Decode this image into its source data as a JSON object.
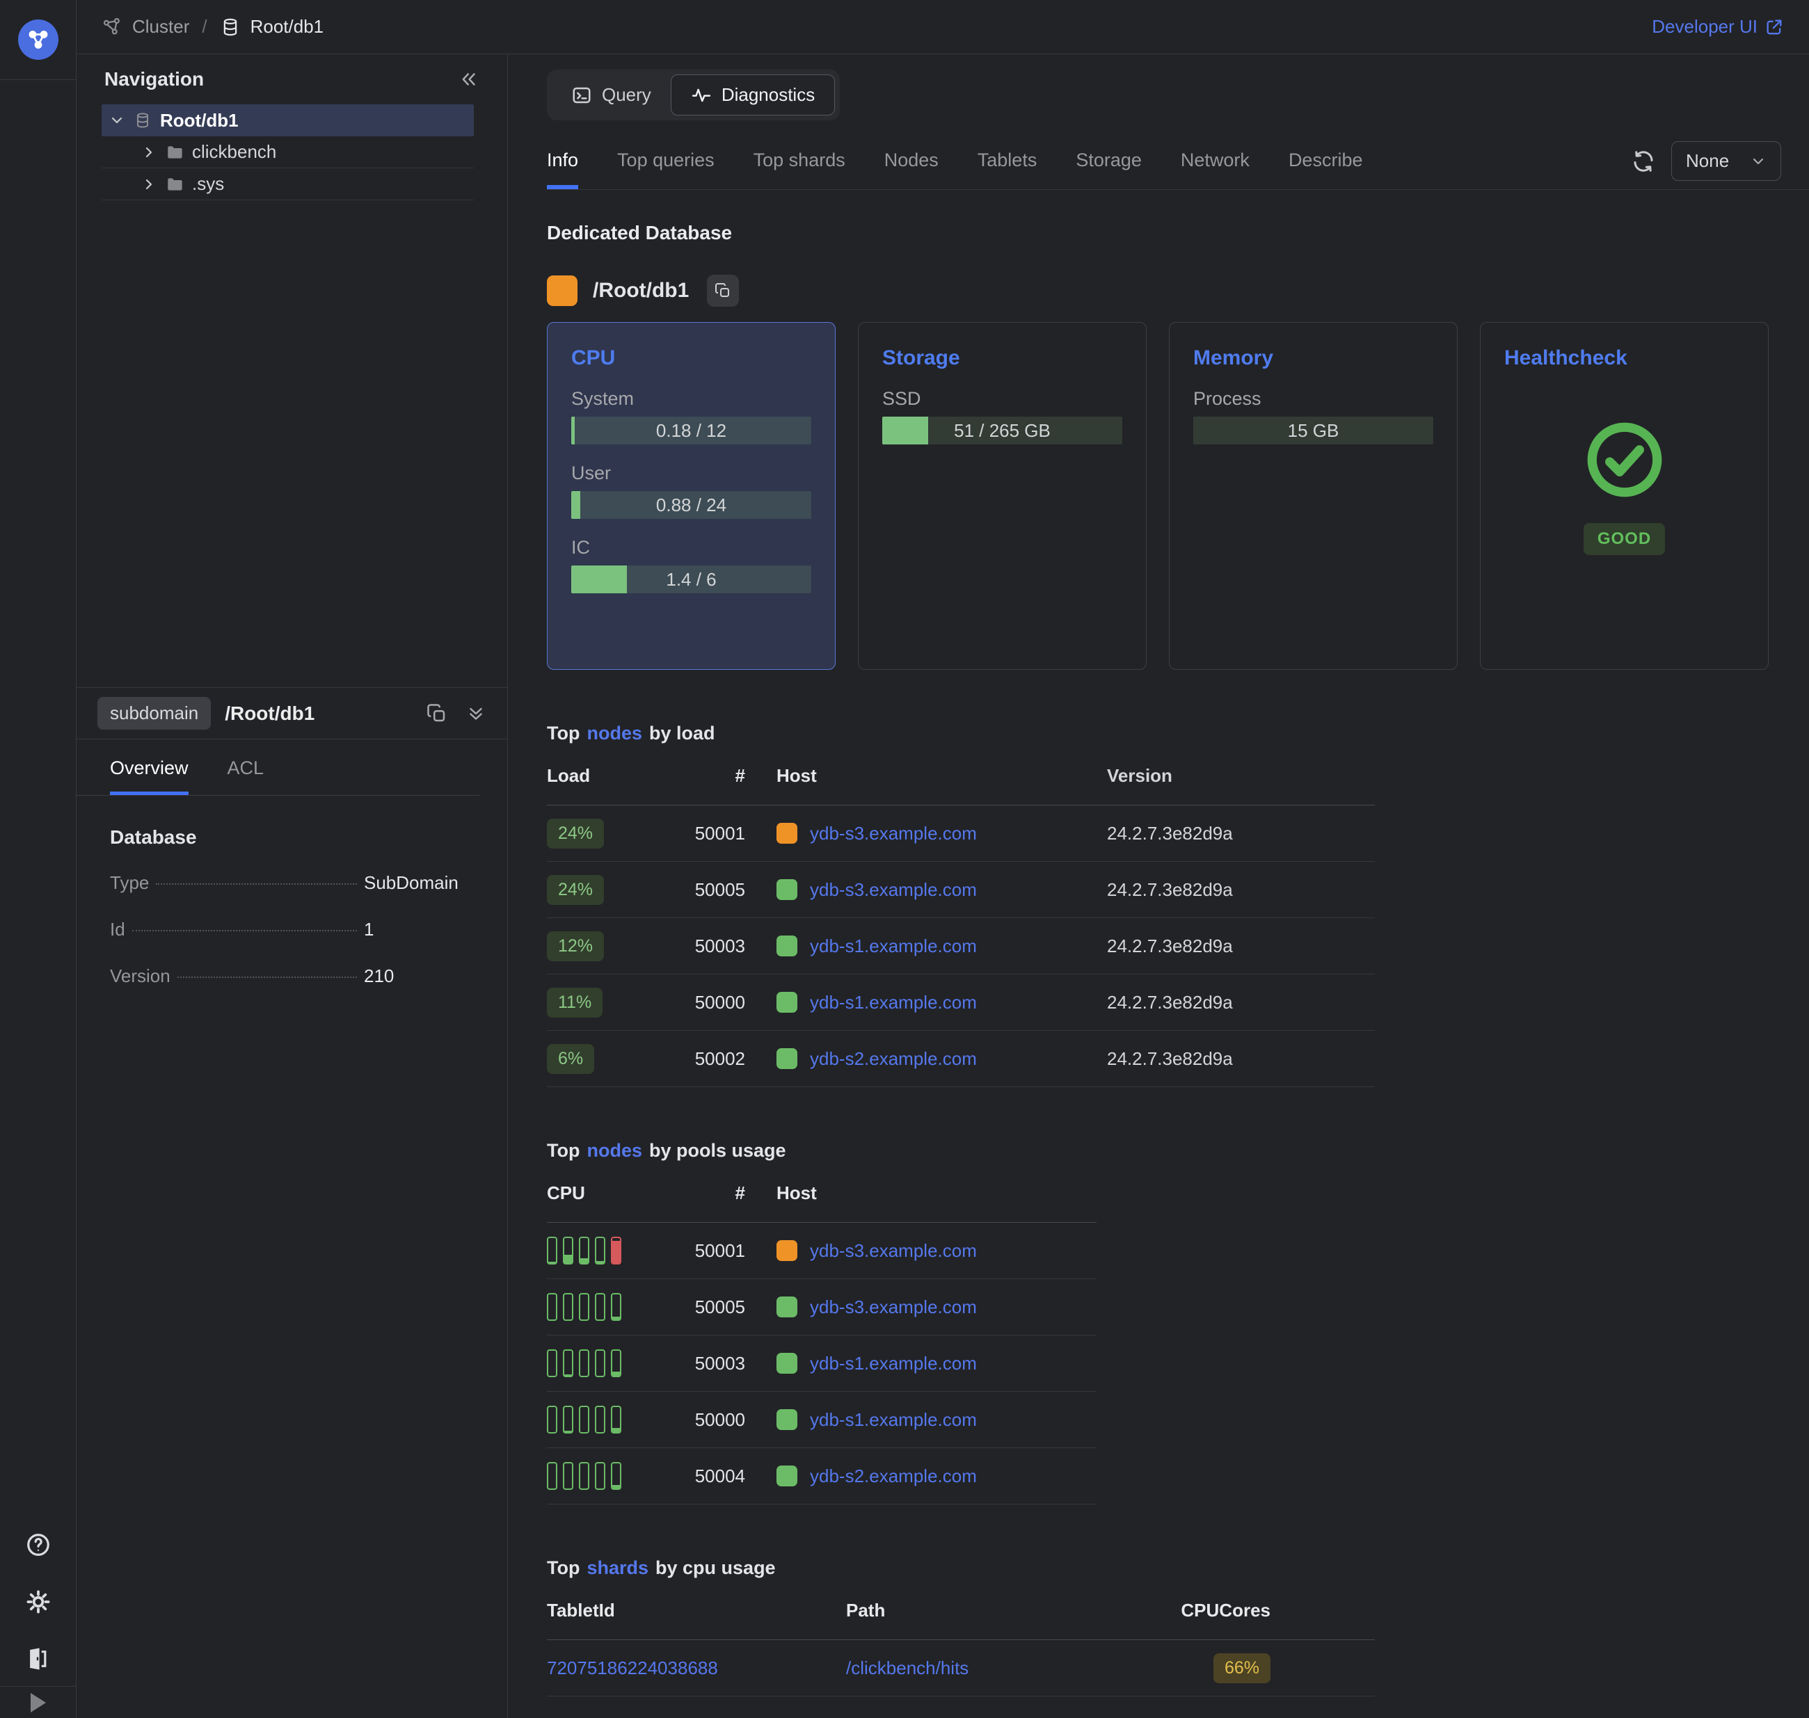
{
  "theme": {
    "accent_blue": "#5076ee",
    "green": "#6cbc67",
    "orange": "#ef9327",
    "red": "#d6595c",
    "yellow": "#e3bf4b"
  },
  "header": {
    "breadcrumb_cluster": "Cluster",
    "breadcrumb_separator": "/",
    "breadcrumb_entity": "Root/db1",
    "developer_ui_label": "Developer UI"
  },
  "sidebar": {
    "title": "Navigation",
    "tree": [
      {
        "label": "Root/db1"
      },
      {
        "label": "clickbench"
      },
      {
        "label": ".sys"
      }
    ],
    "info": {
      "type_badge": "subdomain",
      "path": "/Root/db1",
      "tab_overview": "Overview",
      "tab_acl": "ACL",
      "section_title": "Database",
      "props": [
        {
          "label": "Type",
          "value": "SubDomain"
        },
        {
          "label": "Id",
          "value": "1"
        },
        {
          "label": "Version",
          "value": "210"
        }
      ]
    }
  },
  "toolbar": {
    "query_label": "Query",
    "diagnostics_label": "Diagnostics",
    "tabs": [
      "Info",
      "Top queries",
      "Top shards",
      "Nodes",
      "Tablets",
      "Storage",
      "Network",
      "Describe"
    ],
    "active_tab": "Info",
    "autorefresh_value": "None"
  },
  "main": {
    "section_title": "Dedicated Database",
    "entity": {
      "name": "/Root/db1",
      "status_color": "#ef9327"
    },
    "cards": {
      "cpu": {
        "title": "CPU",
        "metrics": [
          {
            "label": "System",
            "text": "0.18 / 12",
            "fill": "1.5%"
          },
          {
            "label": "User",
            "text": "0.88 / 24",
            "fill": "3.7%"
          },
          {
            "label": "IC",
            "text": "1.4 / 6",
            "fill": "23.3%"
          }
        ]
      },
      "storage": {
        "title": "Storage",
        "metrics": [
          {
            "label": "SSD",
            "text": "51 / 265 GB",
            "fill": "19.2%"
          }
        ]
      },
      "memory": {
        "title": "Memory",
        "metrics": [
          {
            "label": "Process",
            "text": "15 GB",
            "fill": "0%"
          }
        ]
      },
      "healthcheck": {
        "title": "Healthcheck",
        "status": "GOOD"
      }
    },
    "top_nodes_load": {
      "title_prefix": "Top",
      "title_link": "nodes",
      "title_suffix": "by load",
      "headers": {
        "load": "Load",
        "num": "#",
        "host": "Host",
        "version": "Version"
      },
      "rows": [
        {
          "load": "24%",
          "id": "50001",
          "host": "ydb-s3.example.com",
          "version": "24.2.7.3e82d9a",
          "status_color": "#ef9327"
        },
        {
          "load": "24%",
          "id": "50005",
          "host": "ydb-s3.example.com",
          "version": "24.2.7.3e82d9a",
          "status_color": "#6cbc67"
        },
        {
          "load": "12%",
          "id": "50003",
          "host": "ydb-s1.example.com",
          "version": "24.2.7.3e82d9a",
          "status_color": "#6cbc67"
        },
        {
          "load": "11%",
          "id": "50000",
          "host": "ydb-s1.example.com",
          "version": "24.2.7.3e82d9a",
          "status_color": "#6cbc67"
        },
        {
          "load": "6%",
          "id": "50002",
          "host": "ydb-s2.example.com",
          "version": "24.2.7.3e82d9a",
          "status_color": "#6cbc67"
        }
      ]
    },
    "top_nodes_pools": {
      "title_prefix": "Top",
      "title_link": "nodes",
      "title_suffix": "by pools usage",
      "headers": {
        "cpu": "CPU",
        "num": "#",
        "host": "Host"
      },
      "rows": [
        {
          "id": "50001",
          "host": "ydb-s3.example.com",
          "status_color": "#ef9327",
          "pools": [
            {
              "fill": "6%",
              "color": "green"
            },
            {
              "fill": "34%",
              "color": "green"
            },
            {
              "fill": "20%",
              "color": "green"
            },
            {
              "fill": "8%",
              "color": "green"
            },
            {
              "fill": "88%",
              "color": "red"
            }
          ]
        },
        {
          "id": "50005",
          "host": "ydb-s3.example.com",
          "status_color": "#6cbc67",
          "pools": [
            {
              "fill": "0%",
              "color": "green"
            },
            {
              "fill": "0%",
              "color": "green"
            },
            {
              "fill": "0%",
              "color": "green"
            },
            {
              "fill": "0%",
              "color": "green"
            },
            {
              "fill": "12%",
              "color": "green"
            }
          ]
        },
        {
          "id": "50003",
          "host": "ydb-s1.example.com",
          "status_color": "#6cbc67",
          "pools": [
            {
              "fill": "0%",
              "color": "green"
            },
            {
              "fill": "6%",
              "color": "green"
            },
            {
              "fill": "0%",
              "color": "green"
            },
            {
              "fill": "0%",
              "color": "green"
            },
            {
              "fill": "16%",
              "color": "green"
            }
          ]
        },
        {
          "id": "50000",
          "host": "ydb-s1.example.com",
          "status_color": "#6cbc67",
          "pools": [
            {
              "fill": "0%",
              "color": "green"
            },
            {
              "fill": "6%",
              "color": "green"
            },
            {
              "fill": "0%",
              "color": "green"
            },
            {
              "fill": "0%",
              "color": "green"
            },
            {
              "fill": "18%",
              "color": "green"
            }
          ]
        },
        {
          "id": "50004",
          "host": "ydb-s2.example.com",
          "status_color": "#6cbc67",
          "pools": [
            {
              "fill": "0%",
              "color": "green"
            },
            {
              "fill": "0%",
              "color": "green"
            },
            {
              "fill": "0%",
              "color": "green"
            },
            {
              "fill": "0%",
              "color": "green"
            },
            {
              "fill": "14%",
              "color": "green"
            }
          ]
        }
      ]
    },
    "top_shards": {
      "title_prefix": "Top",
      "title_link": "shards",
      "title_suffix": "by cpu usage",
      "headers": {
        "tablet": "TabletId",
        "path": "Path",
        "cores": "CPUCores"
      },
      "rows": [
        {
          "tablet": "72075186224038688",
          "path": "/clickbench/hits",
          "cores": "66%"
        }
      ]
    }
  }
}
